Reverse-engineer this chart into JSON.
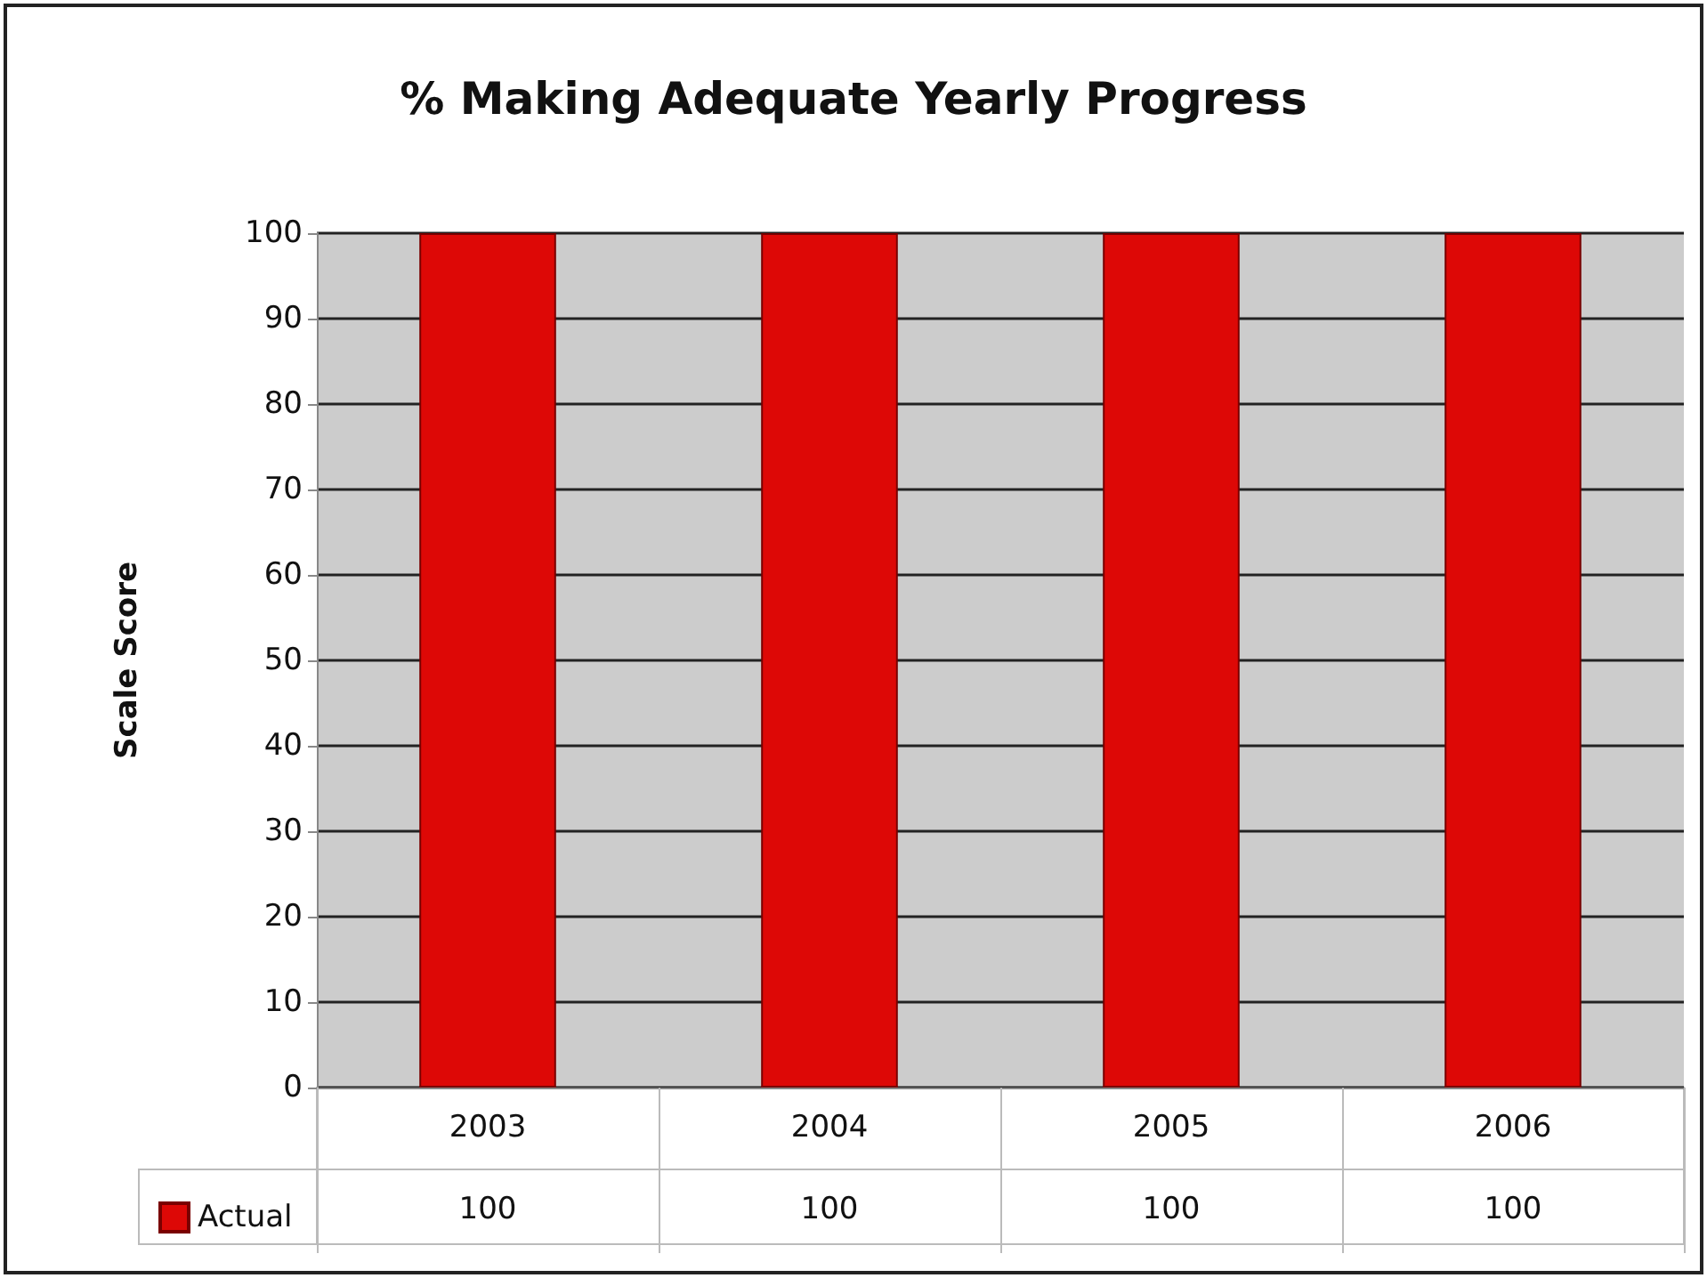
{
  "chart_data": {
    "type": "bar",
    "title": "% Making Adequate Yearly Progress",
    "ylabel": "Scale Score",
    "categories": [
      "2003",
      "2004",
      "2005",
      "2006"
    ],
    "series": [
      {
        "name": "Actual",
        "color": "#dd0806",
        "values": [
          100,
          100,
          100,
          100
        ]
      }
    ],
    "ylim": [
      0,
      100
    ],
    "yticks": [
      0,
      10,
      20,
      30,
      40,
      50,
      60,
      70,
      80,
      90,
      100
    ],
    "grid": "y",
    "legend": "bottom left",
    "data_labels": true
  }
}
